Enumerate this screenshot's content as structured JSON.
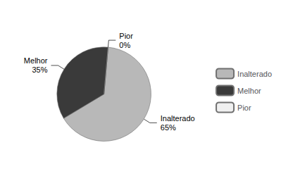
{
  "chart_data": {
    "type": "pie",
    "categories": [
      "Inalterado",
      "Melhor",
      "Pior"
    ],
    "values": [
      65,
      35,
      0.0001
    ],
    "value_labels": [
      "65%",
      "35%",
      "0%"
    ],
    "colors": [
      "#b8b8b8",
      "#3a3a3a",
      "#f0f0f0"
    ],
    "data_labels": true,
    "legend": "right"
  }
}
